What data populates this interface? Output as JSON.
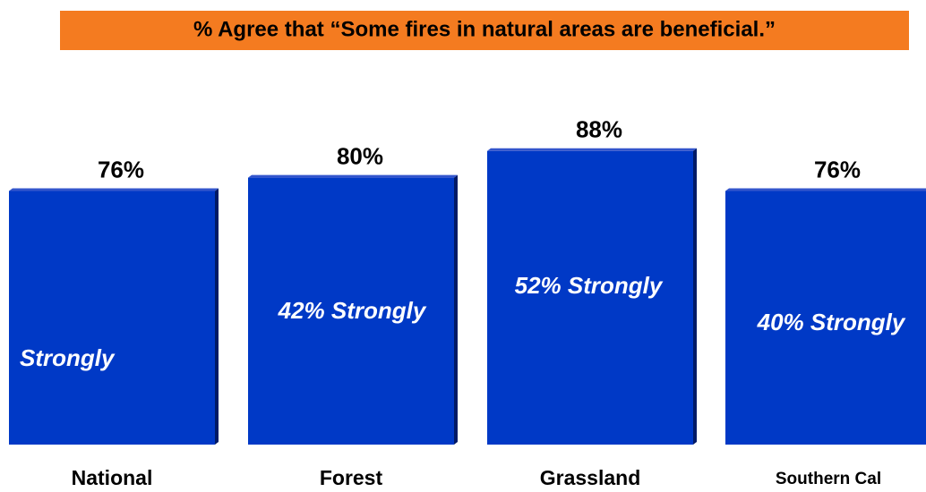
{
  "chart_data": {
    "type": "bar",
    "title": "% Agree that “Some fires in natural areas are beneficial.”",
    "categories": [
      "National",
      "Forest",
      "Grassland",
      "Southern Cal"
    ],
    "values": [
      76,
      80,
      88,
      76
    ],
    "value_labels": [
      "76%",
      "80%",
      "88%",
      "76%"
    ],
    "inner_labels": [
      "Strongly",
      "42% Strongly",
      "52% Strongly",
      "40% Strongly"
    ],
    "color": "#0039c6",
    "title_background": "#f47b20"
  }
}
